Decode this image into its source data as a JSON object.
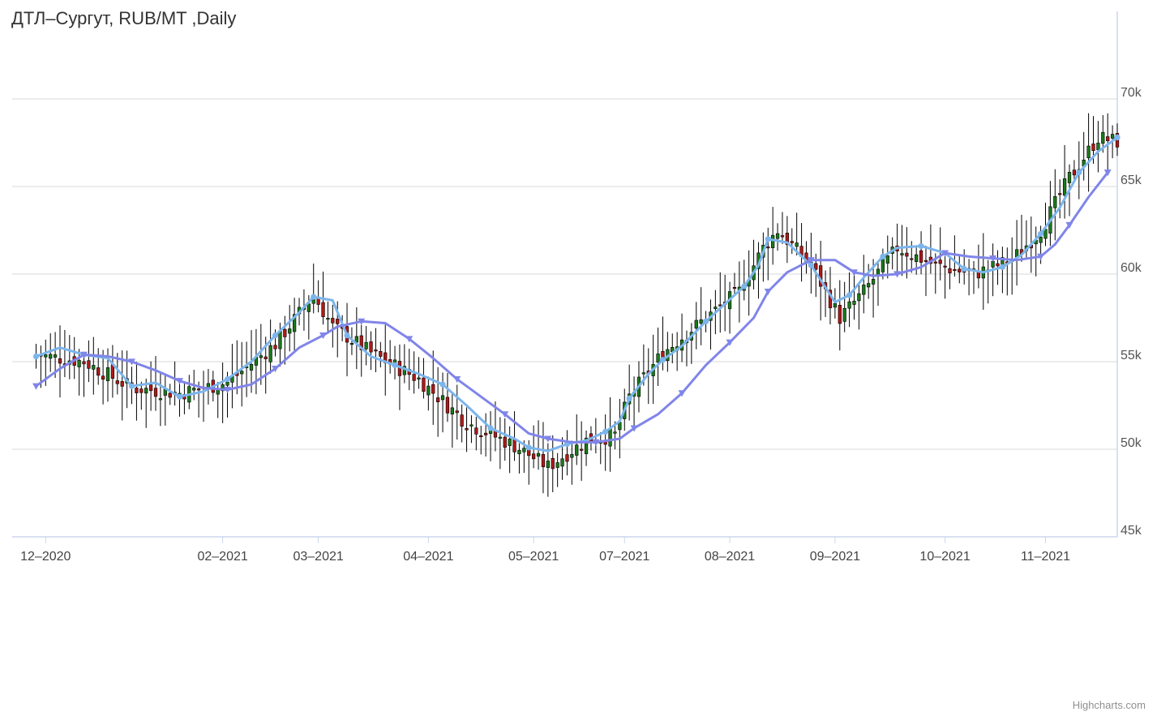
{
  "title": "ДТЛ–Сургут, RUB/MT ,Daily",
  "credits": "Highcharts.com",
  "chart_data": {
    "type": "candlestick",
    "title": "ДТЛ–Сургут, RUB/MT ,Daily",
    "y_ticks": [
      "45k",
      "50k",
      "55k",
      "60k",
      "65k",
      "70k"
    ],
    "y_tick_values": [
      45000,
      50000,
      55000,
      60000,
      65000,
      70000
    ],
    "ylim": [
      45000,
      75000
    ],
    "x_ticks": [
      "12–2020",
      "02–2021",
      "03–2021",
      "04–2021",
      "05–2021",
      "07–2021",
      "08–2021",
      "09–2021",
      "10–2021",
      "11–2021"
    ],
    "x_tick_positions": [
      2,
      39,
      59,
      82,
      104,
      123,
      145,
      167,
      190,
      211
    ],
    "xlim": [
      -5,
      226
    ],
    "grid": true,
    "y_axis_side": "right",
    "colors": {
      "up": "#1a7a1a",
      "down": "#b01818",
      "wick": "#000000",
      "fast_line": "#7cb5ec",
      "slow_line": "#8085e9",
      "grid": "#d8d8d8",
      "axis": "#ccd6eb"
    },
    "key_closes": [
      [
        0,
        55400
      ],
      [
        10,
        55000
      ],
      [
        20,
        53500
      ],
      [
        30,
        53200
      ],
      [
        40,
        53800
      ],
      [
        50,
        56000
      ],
      [
        58,
        58800
      ],
      [
        62,
        57000
      ],
      [
        70,
        55500
      ],
      [
        80,
        54000
      ],
      [
        90,
        51500
      ],
      [
        100,
        50200
      ],
      [
        107,
        49000
      ],
      [
        115,
        50500
      ],
      [
        121,
        50800
      ],
      [
        124,
        53000
      ],
      [
        131,
        55500
      ],
      [
        140,
        57500
      ],
      [
        147,
        59000
      ],
      [
        152,
        61500
      ],
      [
        155,
        62500
      ],
      [
        162,
        60500
      ],
      [
        168,
        57500
      ],
      [
        173,
        59000
      ],
      [
        180,
        61500
      ],
      [
        188,
        60500
      ],
      [
        196,
        60000
      ],
      [
        204,
        60800
      ],
      [
        210,
        62500
      ],
      [
        216,
        65500
      ],
      [
        222,
        67800
      ],
      [
        227,
        67500
      ]
    ],
    "series": [
      {
        "type": "line",
        "marker": "circle",
        "points": [
          [
            0,
            55300
          ],
          [
            5,
            55800
          ],
          [
            10,
            55400
          ],
          [
            15,
            55200
          ],
          [
            20,
            53600
          ],
          [
            25,
            53800
          ],
          [
            30,
            53000
          ],
          [
            35,
            53300
          ],
          [
            40,
            54000
          ],
          [
            45,
            55000
          ],
          [
            50,
            56500
          ],
          [
            55,
            57800
          ],
          [
            58,
            58700
          ],
          [
            62,
            58500
          ],
          [
            65,
            56500
          ],
          [
            70,
            55300
          ],
          [
            75,
            54800
          ],
          [
            80,
            54300
          ],
          [
            85,
            53700
          ],
          [
            90,
            52500
          ],
          [
            95,
            51200
          ],
          [
            100,
            50600
          ],
          [
            103,
            50100
          ],
          [
            107,
            49900
          ],
          [
            111,
            50300
          ],
          [
            115,
            50500
          ],
          [
            119,
            51000
          ],
          [
            122,
            51600
          ],
          [
            124,
            52900
          ],
          [
            128,
            54300
          ],
          [
            131,
            55100
          ],
          [
            135,
            55900
          ],
          [
            140,
            57300
          ],
          [
            144,
            58300
          ],
          [
            148,
            59300
          ],
          [
            151,
            60500
          ],
          [
            153,
            62000
          ],
          [
            157,
            61800
          ],
          [
            162,
            60500
          ],
          [
            167,
            58400
          ],
          [
            170,
            58800
          ],
          [
            173,
            59800
          ],
          [
            177,
            61000
          ],
          [
            180,
            61500
          ],
          [
            185,
            61600
          ],
          [
            190,
            61200
          ],
          [
            194,
            60300
          ],
          [
            198,
            60100
          ],
          [
            202,
            60400
          ],
          [
            206,
            61100
          ],
          [
            210,
            62300
          ],
          [
            214,
            63800
          ],
          [
            218,
            65800
          ],
          [
            222,
            67000
          ],
          [
            226,
            67800
          ]
        ]
      },
      {
        "type": "line",
        "marker": "triangle-down",
        "points": [
          [
            0,
            53600
          ],
          [
            5,
            54600
          ],
          [
            10,
            55400
          ],
          [
            15,
            55300
          ],
          [
            20,
            55000
          ],
          [
            25,
            54500
          ],
          [
            30,
            53900
          ],
          [
            35,
            53500
          ],
          [
            40,
            53400
          ],
          [
            45,
            53700
          ],
          [
            50,
            54600
          ],
          [
            55,
            55800
          ],
          [
            60,
            56500
          ],
          [
            63,
            57000
          ],
          [
            68,
            57300
          ],
          [
            73,
            57200
          ],
          [
            78,
            56300
          ],
          [
            83,
            55200
          ],
          [
            88,
            54000
          ],
          [
            93,
            53000
          ],
          [
            98,
            52000
          ],
          [
            103,
            50900
          ],
          [
            107,
            50600
          ],
          [
            112,
            50400
          ],
          [
            117,
            50400
          ],
          [
            122,
            50600
          ],
          [
            125,
            51200
          ],
          [
            130,
            52000
          ],
          [
            135,
            53200
          ],
          [
            140,
            54800
          ],
          [
            145,
            56100
          ],
          [
            150,
            57500
          ],
          [
            153,
            59000
          ],
          [
            157,
            60100
          ],
          [
            162,
            60800
          ],
          [
            167,
            60800
          ],
          [
            171,
            60100
          ],
          [
            175,
            59900
          ],
          [
            180,
            60000
          ],
          [
            185,
            60400
          ],
          [
            190,
            61200
          ],
          [
            195,
            61000
          ],
          [
            200,
            60900
          ],
          [
            205,
            60800
          ],
          [
            210,
            61000
          ],
          [
            213,
            61700
          ],
          [
            216,
            62800
          ],
          [
            220,
            64400
          ],
          [
            224,
            65800
          ]
        ]
      }
    ]
  }
}
